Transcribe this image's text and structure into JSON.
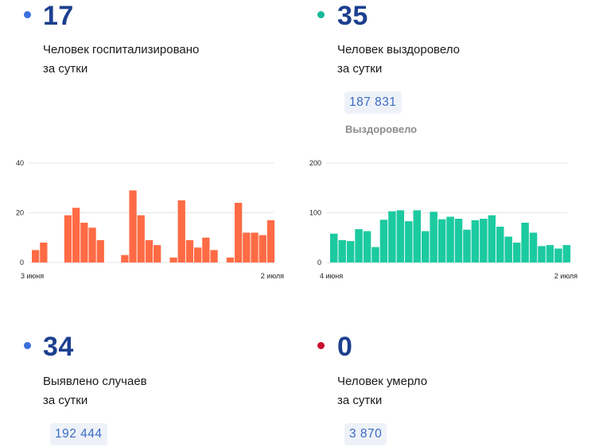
{
  "colors": {
    "blue_dot": "#3b6fe0",
    "teal_dot": "#17b897",
    "red_dot": "#c8102e",
    "bar_orange": "#ff6b45",
    "bar_teal": "#1ccaa0",
    "number": "#1c3f8f"
  },
  "cards": {
    "hospitalized": {
      "value": "17",
      "line1": "Человек госпитализировано",
      "line2": "за сутки"
    },
    "recovered": {
      "value": "35",
      "line1": "Человек выздоровело",
      "line2": "за сутки",
      "total": "187 831",
      "total_caption": "Выздоровело"
    },
    "cases": {
      "value": "34",
      "line1": "Выявлено случаев",
      "line2": "за сутки",
      "total": "192 444"
    },
    "deaths": {
      "value": "0",
      "line1": "Человек умерло",
      "line2": "за сутки",
      "total": "3 870"
    }
  },
  "chart_data": [
    {
      "type": "bar",
      "ylim": [
        0,
        40
      ],
      "yticks": [
        "0",
        "20",
        "40"
      ],
      "x_start_label": "3 июня",
      "x_end_label": "2 июля",
      "values": [
        5,
        8,
        0,
        0,
        19,
        22,
        16,
        14,
        9,
        0,
        0,
        3,
        29,
        19,
        9,
        7,
        0,
        2,
        25,
        9,
        6,
        10,
        5,
        0,
        2,
        24,
        12,
        12,
        11,
        17
      ]
    },
    {
      "type": "bar",
      "ylim": [
        0,
        200
      ],
      "yticks": [
        "0",
        "100",
        "200"
      ],
      "x_start_label": "4 июня",
      "x_end_label": "2 июля",
      "values": [
        58,
        45,
        43,
        67,
        63,
        31,
        86,
        103,
        105,
        83,
        105,
        63,
        102,
        87,
        92,
        88,
        66,
        85,
        88,
        95,
        72,
        52,
        40,
        80,
        60,
        33,
        35,
        28,
        35
      ]
    }
  ]
}
